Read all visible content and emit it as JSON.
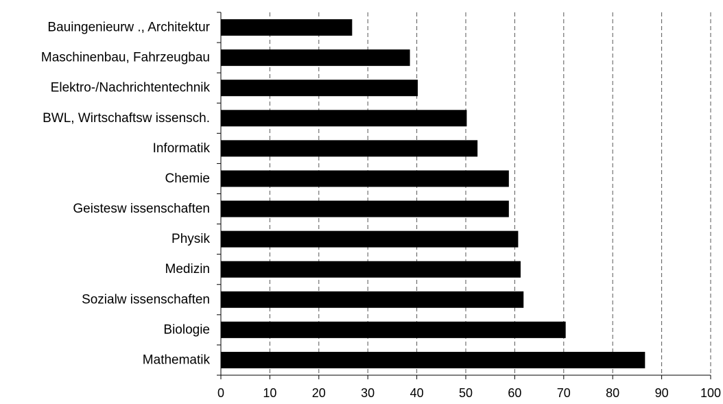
{
  "chart_data": {
    "type": "bar",
    "orientation": "horizontal",
    "categories": [
      "Bauingenieurw ., Architektur",
      "Maschinenbau, Fahrzeugbau",
      "Elektro-/Nachrichtentechnik",
      "BWL, Wirtschaftsw issensch.",
      "Informatik",
      "Chemie",
      "Geistesw issenschaften",
      "Physik",
      "Medizin",
      "Sozialw issenschaften",
      "Biologie",
      "Mathematik"
    ],
    "values": [
      26.8,
      38.6,
      40.2,
      50.2,
      52.4,
      58.8,
      58.8,
      60.7,
      61.2,
      61.8,
      70.4,
      86.6
    ],
    "xlim": [
      0,
      100
    ],
    "x_ticks": [
      "0",
      "10",
      "20",
      "30",
      "40",
      "50",
      "60",
      "70",
      "80",
      "90",
      "100"
    ],
    "grid": "vertical dashed",
    "title": "",
    "xlabel": "",
    "ylabel": "",
    "colors": {
      "bar": "#000000",
      "grid": "#555555",
      "axis": "#000000",
      "background": "#ffffff"
    }
  }
}
